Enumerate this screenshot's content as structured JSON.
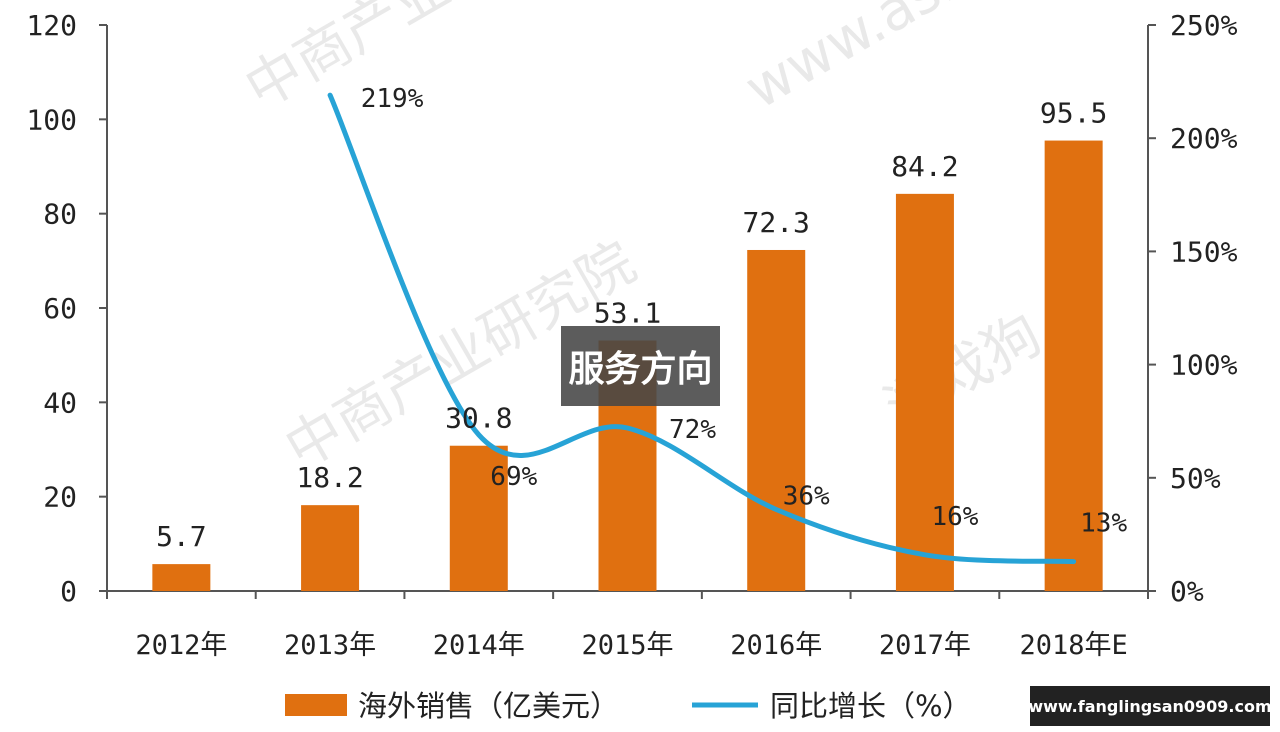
{
  "colors": {
    "bar": "#e07010",
    "line": "#27a3d6",
    "axis": "#555555",
    "watermark": "#cfcfcf"
  },
  "overlay_label": "服务方向",
  "url_badge": "www.fanglingsan0909.com",
  "watermarks": [
    "中商产业研究院",
    "www.askci.com/reports",
    "中商产业研究院",
    "游戏狗"
  ],
  "chart_data": {
    "type": "bar",
    "title": "",
    "xlabel": "",
    "ylabel": "",
    "categories": [
      "2012年",
      "2013年",
      "2014年",
      "2015年",
      "2016年",
      "2017年",
      "2018年E"
    ],
    "series": [
      {
        "name": "海外销售（亿美元）",
        "type": "bar",
        "axis": "left",
        "values": [
          5.7,
          18.2,
          30.8,
          53.1,
          72.3,
          84.2,
          95.5
        ],
        "labels": [
          "5.7",
          "18.2",
          "30.8",
          "53.1",
          "72.3",
          "84.2",
          "95.5"
        ]
      },
      {
        "name": "同比增长（%）",
        "type": "line",
        "axis": "right",
        "values": [
          null,
          219,
          69,
          72,
          36,
          16,
          13
        ],
        "labels": [
          "",
          "219%",
          "69%",
          "72%",
          "36%",
          "16%",
          "13%"
        ]
      }
    ],
    "y_left": {
      "ylim": [
        0,
        120
      ],
      "ticks": [
        0,
        20,
        40,
        60,
        80,
        100,
        120
      ],
      "tick_labels": [
        "0",
        "20",
        "40",
        "60",
        "80",
        "100",
        "120"
      ]
    },
    "y_right": {
      "ylim": [
        0,
        250
      ],
      "ticks": [
        0,
        50,
        100,
        150,
        200,
        250
      ],
      "tick_labels": [
        "0%",
        "50%",
        "100%",
        "150%",
        "200%",
        "250%"
      ]
    },
    "grid": false,
    "legend_position": "bottom"
  }
}
